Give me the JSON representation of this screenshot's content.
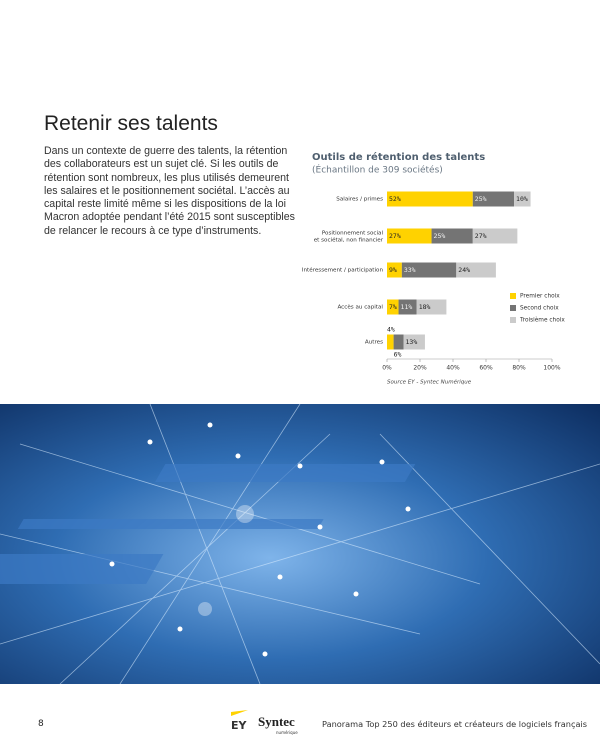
{
  "header": {
    "title": "Retenir ses talents"
  },
  "body": {
    "paragraph": "Dans un contexte de guerre des talents, la rétention des collaborateurs est un sujet clé. Si les outils de rétention sont nombreux, les plus utilisés demeurent les salaires et le positionnement sociétal. L’accès au capital reste limité même si les dispositions de la loi Macron adoptée pendant l’été 2015 sont susceptibles de relancer le recours à ce type d’instruments."
  },
  "chart_data": {
    "type": "bar",
    "horizontal": true,
    "stacked": true,
    "title": "Outils de rétention des talents",
    "subtitle": "(Échantillon de 309 sociétés)",
    "categories": [
      "Salaires / primes",
      "Positionnement social\net sociétal, non financier",
      "Intéressement / participation",
      "Accès au capital",
      "Autres"
    ],
    "series": [
      {
        "name": "Premier choix",
        "color": "#ffd200",
        "values": [
          52,
          27,
          9,
          7,
          4
        ],
        "value_labels": [
          "52%",
          "27%",
          "9%",
          "7%",
          "4%"
        ]
      },
      {
        "name": "Second choix",
        "color": "#747474",
        "values": [
          25,
          25,
          33,
          11,
          6
        ],
        "value_labels": [
          "25%",
          "25%",
          "33%",
          "11%",
          "6%"
        ]
      },
      {
        "name": "Troisième choix",
        "color": "#cbcbcb",
        "values": [
          10,
          27,
          24,
          18,
          13
        ],
        "value_labels": [
          "10%",
          "27%",
          "24%",
          "18%",
          "13%"
        ]
      }
    ],
    "xlim": [
      0,
      100
    ],
    "xticks": [
      {
        "value": 0,
        "label": "0%"
      },
      {
        "value": 20,
        "label": "20%"
      },
      {
        "value": 40,
        "label": "40%"
      },
      {
        "value": 60,
        "label": "60%"
      },
      {
        "value": 80,
        "label": "80%"
      },
      {
        "value": 100,
        "label": "100%"
      }
    ],
    "legend": "right",
    "source": "Source EY - Syntec Numérique"
  },
  "footer": {
    "page": "8",
    "logo_ey": "EY",
    "logo_syntec": "Syntec",
    "logo_syntec_sub": "numérique",
    "caption": "Panorama Top 250 des éditeurs et créateurs de logiciels français"
  }
}
